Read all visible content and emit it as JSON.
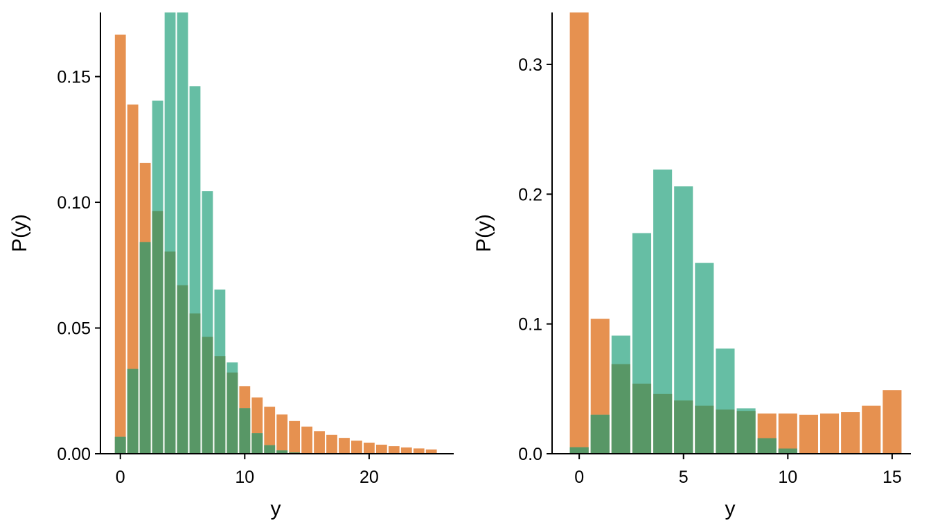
{
  "colors": {
    "orange": "#E69150",
    "teal": "#5EBB9F",
    "overlap": "#589766",
    "axis": "#000000",
    "bar_border": "#ffffff"
  },
  "chart_data": [
    {
      "type": "bar",
      "xlabel": "y",
      "ylabel": "P(y)",
      "x": [
        0,
        1,
        2,
        3,
        4,
        5,
        6,
        7,
        8,
        9,
        10,
        11,
        12,
        13,
        14,
        15,
        16,
        17,
        18,
        19,
        20,
        21,
        22,
        23,
        24,
        25
      ],
      "xlim": [
        -1.6,
        26.8
      ],
      "ylim": [
        0,
        0.1755
      ],
      "xticks": [
        0,
        10,
        20
      ],
      "xtick_labels": [
        "0",
        "10",
        "20"
      ],
      "yticks": [
        0,
        0.05,
        0.1,
        0.15
      ],
      "ytick_labels": [
        "0.00",
        "0.05",
        "0.10",
        "0.15"
      ],
      "grid": false,
      "legend": "none",
      "series": [
        {
          "color": "#E69150",
          "values": [
            0.1667,
            0.1389,
            0.1157,
            0.0965,
            0.0804,
            0.067,
            0.0558,
            0.0465,
            0.0388,
            0.0323,
            0.0269,
            0.0224,
            0.0187,
            0.0156,
            0.013,
            0.0108,
            0.009,
            0.0075,
            0.0063,
            0.0052,
            0.0044,
            0.0036,
            0.003,
            0.0025,
            0.0021,
            0.0017
          ]
        },
        {
          "color": "#5EBB9F",
          "values": [
            0.0067,
            0.0337,
            0.0842,
            0.1404,
            0.1755,
            0.1755,
            0.1462,
            0.1044,
            0.0653,
            0.0363,
            0.0181,
            0.0082,
            0.0034,
            0.0013,
            0.0005,
            0.0002,
            0.0001,
            0,
            0,
            0,
            0,
            0,
            0,
            0,
            0,
            0
          ]
        }
      ]
    },
    {
      "type": "bar",
      "xlabel": "y",
      "ylabel": "P(y)",
      "x": [
        0,
        1,
        2,
        3,
        4,
        5,
        6,
        7,
        8,
        9,
        10,
        11,
        12,
        13,
        14,
        15
      ],
      "xlim": [
        -1.3,
        15.9
      ],
      "ylim": [
        0,
        0.34
      ],
      "xticks": [
        0,
        5,
        10,
        15
      ],
      "xtick_labels": [
        "0",
        "5",
        "10",
        "15"
      ],
      "yticks": [
        0,
        0.1,
        0.2,
        0.3
      ],
      "ytick_labels": [
        "0.0",
        "0.1",
        "0.2",
        "0.3"
      ],
      "grid": false,
      "legend": "none",
      "series": [
        {
          "color": "#E69150",
          "values": [
            0.34,
            0.104,
            0.069,
            0.054,
            0.046,
            0.041,
            0.037,
            0.034,
            0.033,
            0.031,
            0.031,
            0.03,
            0.031,
            0.032,
            0.037,
            0.049
          ]
        },
        {
          "color": "#5EBB9F",
          "values": [
            0.005,
            0.03,
            0.091,
            0.17,
            0.219,
            0.206,
            0.147,
            0.081,
            0.035,
            0.012,
            0.004,
            0,
            0,
            0,
            0,
            0
          ]
        }
      ]
    }
  ]
}
